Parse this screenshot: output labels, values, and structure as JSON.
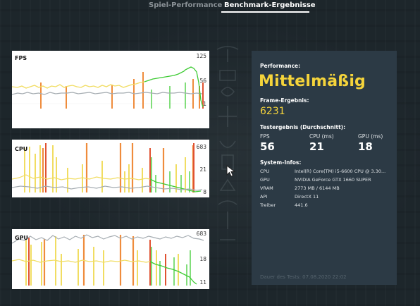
{
  "tabs": [
    {
      "label": "Spiel-Performance",
      "active": false
    },
    {
      "label": "Benchmark-Ergebnisse",
      "active": true
    }
  ],
  "charts": [
    {
      "label": "FPS",
      "ticks": [
        "125",
        "56",
        "1"
      ]
    },
    {
      "label": "CPU",
      "ticks": [
        "683",
        "21",
        "8"
      ]
    },
    {
      "label": "GPU",
      "ticks": [
        "683",
        "18",
        "11"
      ]
    }
  ],
  "info": {
    "performance_label": "Performance:",
    "performance_value": "Mittelmäßig",
    "frame_label": "Frame-Ergebnis:",
    "frame_value": "6231",
    "test_label": "Testergebnis (Durchschnitt):",
    "fps_label": "FPS",
    "fps_value": "56",
    "cpu_label": "CPU (ms)",
    "cpu_value": "21",
    "gpu_label": "GPU (ms)",
    "gpu_value": "18",
    "sys_label": "System-Infos:",
    "sys": [
      {
        "key": "CPU",
        "value": "Intel(R) Core(TM) i5-6600 CPU @ 3.30..."
      },
      {
        "key": "GPU",
        "value": "NVIDIA GeForce GTX 1660 SUPER"
      },
      {
        "key": "VRAM",
        "value": "2773 MB / 6144 MB"
      },
      {
        "key": "API",
        "value": "DirectX 11"
      },
      {
        "key": "Treiber",
        "value": "441.6"
      }
    ],
    "date": "Dauer des Tests: 07.08.2020 22:02"
  },
  "colors": {
    "accent_yellow": "#f5d43b",
    "line_yellow": "#f1dd62",
    "line_green": "#3ecb34",
    "line_orange": "#ef8c3c",
    "line_red": "#e05231",
    "line_gray": "#a6adb2",
    "panel_bg": "#2c3a45"
  },
  "icons": [
    "hieroglyph-decoration",
    "mouse-cursor-icon"
  ]
}
